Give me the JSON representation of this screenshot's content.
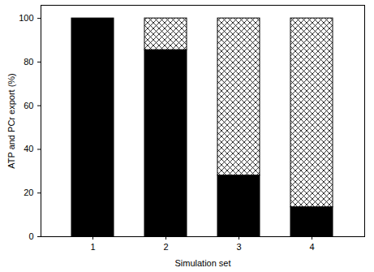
{
  "chart_data": {
    "type": "bar",
    "stacked": true,
    "categories": [
      "1",
      "2",
      "3",
      "4"
    ],
    "series": [
      {
        "color": "#000000",
        "values": [
          100,
          85.5,
          28,
          13.5
        ]
      },
      {
        "color": "#000000",
        "values": [
          0,
          14.5,
          72,
          86.5
        ]
      }
    ],
    "x_label": "Simulation set",
    "y_label": "ATP and PCr export (%)",
    "ylim": [
      0,
      106
    ],
    "yticks": [
      0,
      20,
      40,
      60,
      80,
      100
    ],
    "grid": false
  }
}
